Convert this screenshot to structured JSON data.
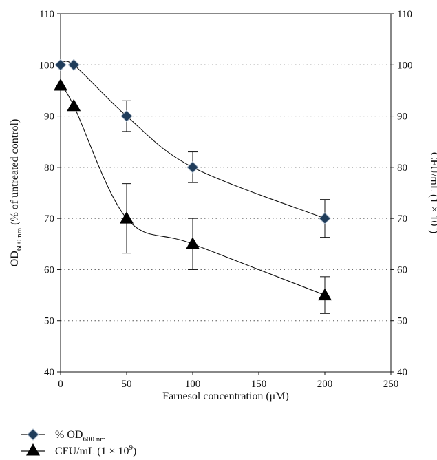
{
  "chart_data": {
    "type": "line",
    "xlabel": "Farnesol concentration (μM)",
    "ylabel_left": {
      "base": "OD",
      "sub": "600 nm",
      "rest": " (% of untreated control)"
    },
    "ylabel_right": {
      "base": "CFU/mL (1 × 10",
      "sup": "9",
      "rest": ")"
    },
    "xlim": [
      0,
      250
    ],
    "xticks": [
      0,
      50,
      100,
      150,
      200,
      250
    ],
    "ylim": [
      40,
      110
    ],
    "yticks": [
      40,
      50,
      60,
      70,
      80,
      90,
      100,
      110
    ],
    "gridlines_y": [
      50,
      60,
      70,
      80,
      90,
      100
    ],
    "grid": "dotted horizontal",
    "legend_position": "bottom-left",
    "series": [
      {
        "name": {
          "base": "% OD",
          "sub": "600 nm",
          "rest": ""
        },
        "marker": "diamond",
        "marker_color": "#1f3c5a",
        "x": [
          0,
          10,
          50,
          100,
          200
        ],
        "y": [
          100,
          100,
          90,
          80,
          70
        ],
        "err": [
          0,
          0,
          3,
          3,
          3.7
        ]
      },
      {
        "name": {
          "base": "CFU/mL (1 × 10",
          "sup": "9",
          "rest": ")"
        },
        "marker": "triangle",
        "marker_color": "#000000",
        "x": [
          0,
          10,
          50,
          100,
          200
        ],
        "y": [
          96,
          92,
          70,
          65,
          55
        ],
        "err": [
          0,
          0,
          6.8,
          5,
          3.6
        ]
      }
    ]
  }
}
